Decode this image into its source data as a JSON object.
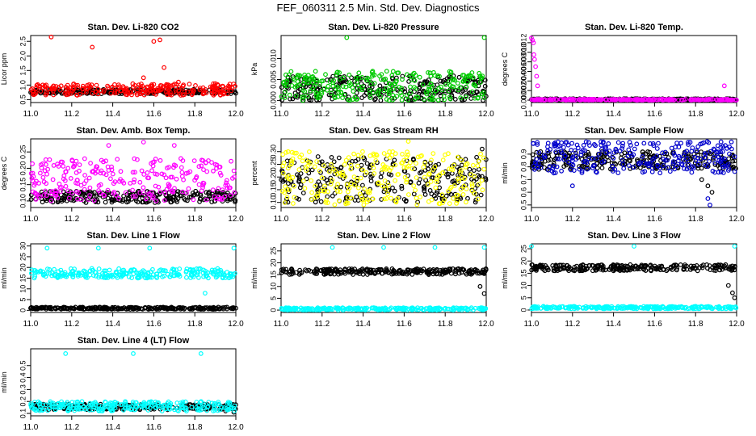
{
  "figure": {
    "title": "FEF_060311  2.5 Min. Std. Dev. Diagnostics"
  },
  "chart_data": [
    {
      "type": "scatter",
      "title": "Stan. Dev. Li-820 CO2",
      "xlabel": "",
      "ylabel": "Licor ppm",
      "xlim": [
        11.0,
        12.0
      ],
      "ylim": [
        0.4,
        2.7
      ],
      "x_ticks": [
        "11.0",
        "11.2",
        "11.4",
        "11.6",
        "11.8",
        "12.0"
      ],
      "y_ticks": [
        "0.5",
        "1.0",
        "1.5",
        "2.0",
        "2.5"
      ],
      "series": [
        {
          "color": "#000000",
          "band": [
            0.7,
            0.85
          ],
          "x": [
            11.0,
            11.2,
            11.4,
            11.6,
            11.8,
            12.0
          ],
          "y": [
            0.75,
            0.8,
            0.78,
            0.8,
            0.78,
            0.72
          ]
        },
        {
          "color": "#ff0000",
          "band": [
            0.65,
            1.05
          ],
          "x": [
            11.1,
            11.3,
            11.55,
            11.6,
            11.63,
            11.65,
            11.72,
            11.9
          ],
          "y": [
            2.65,
            2.3,
            1.25,
            2.5,
            2.55,
            1.6,
            1.1,
            1.05
          ]
        }
      ]
    },
    {
      "type": "scatter",
      "title": "Stan. Dev. Li-820 Pressure",
      "xlabel": "",
      "ylabel": "kPa",
      "xlim": [
        11.0,
        12.0
      ],
      "ylim": [
        -0.0005,
        0.0155
      ],
      "x_ticks": [
        "11.0",
        "11.2",
        "11.4",
        "11.6",
        "11.8",
        "12.0"
      ],
      "y_ticks": [
        "0.000",
        "0.005",
        "0.010"
      ],
      "series": [
        {
          "color": "#000000",
          "band": [
            0.0,
            0.006
          ],
          "x": [
            11.1,
            11.3,
            11.5,
            11.7,
            11.9
          ],
          "y": [
            0.005,
            0.0045,
            0.005,
            0.0045,
            0.005
          ]
        },
        {
          "color": "#00cc00",
          "band": [
            0.0,
            0.007
          ],
          "x": [
            11.32,
            11.99
          ],
          "y": [
            0.015,
            0.015
          ]
        }
      ]
    },
    {
      "type": "scatter",
      "title": "Stan. Dev. Li-820 Temp.",
      "xlabel": "",
      "ylabel": "degrees C",
      "xlim": [
        11.0,
        12.0
      ],
      "ylim": [
        -0.0005,
        0.0135
      ],
      "x_ticks": [
        "11.0",
        "11.2",
        "11.4",
        "11.6",
        "11.8",
        "12.0"
      ],
      "y_ticks": [
        "0.000",
        "0.002",
        "0.004",
        "0.006",
        "0.008",
        "0.010",
        "0.012"
      ],
      "series": [
        {
          "color": "#000000",
          "band": [
            0.0,
            0.0003
          ],
          "x": [
            11.5
          ],
          "y": [
            0.0
          ]
        },
        {
          "color": "#ff00ff",
          "band": [
            0.0,
            0.0002
          ],
          "x": [
            11.0,
            11.005,
            11.01,
            11.012,
            11.015,
            11.02,
            11.025,
            11.03,
            11.94
          ],
          "y": [
            0.013,
            0.0125,
            0.012,
            0.0095,
            0.0085,
            0.007,
            0.005,
            0.003,
            0.003
          ]
        }
      ]
    },
    {
      "type": "scatter",
      "title": "Stan. Dev. Amb. Box Temp.",
      "xlabel": "",
      "ylabel": "degrees C",
      "xlim": [
        11.0,
        12.0
      ],
      "ylim": [
        0.08,
        0.29
      ],
      "x_ticks": [
        "11.0",
        "11.2",
        "11.4",
        "11.6",
        "11.8",
        "12.0"
      ],
      "y_ticks": [
        "0.10",
        "0.15",
        "0.20",
        "0.25"
      ],
      "series": [
        {
          "color": "#000000",
          "band": [
            0.095,
            0.13
          ],
          "x": [
            11.1,
            11.5,
            11.9
          ],
          "y": [
            0.11,
            0.12,
            0.11
          ]
        },
        {
          "color": "#ff00ff",
          "band": [
            0.1,
            0.23
          ],
          "x": [
            11.55,
            11.38,
            11.7
          ],
          "y": [
            0.28,
            0.27,
            0.27
          ]
        }
      ]
    },
    {
      "type": "scatter",
      "title": "Stan. Dev. Gas Stream RH",
      "xlabel": "",
      "ylabel": "percent",
      "xlim": [
        11.0,
        12.0
      ],
      "ylim": [
        0.08,
        0.35
      ],
      "x_ticks": [
        "11.0",
        "11.2",
        "11.4",
        "11.6",
        "11.8",
        "12.0"
      ],
      "y_ticks": [
        "0.10",
        "0.15",
        "0.20",
        "0.25",
        "0.30"
      ],
      "series": [
        {
          "color": "#000000",
          "band": [
            0.1,
            0.28
          ],
          "x": [
            11.18,
            11.98
          ],
          "y": [
            0.28,
            0.31
          ]
        },
        {
          "color": "#ffff00",
          "band": [
            0.09,
            0.3
          ],
          "x": [
            11.62
          ],
          "y": [
            0.34
          ]
        }
      ]
    },
    {
      "type": "scatter",
      "title": "Stan. Dev. Sample Flow",
      "xlabel": "",
      "ylabel": "ml/min",
      "xlim": [
        11.0,
        12.0
      ],
      "ylim": [
        0.48,
        1.02
      ],
      "x_ticks": [
        "11.0",
        "11.2",
        "11.4",
        "11.6",
        "11.8",
        "12.0"
      ],
      "y_ticks": [
        "0.5",
        "0.6",
        "0.7",
        "0.8",
        "0.9"
      ],
      "series": [
        {
          "color": "#000000",
          "band": [
            0.78,
            0.92
          ],
          "x": [
            11.83,
            11.86,
            11.88
          ],
          "y": [
            0.7,
            0.65,
            0.6
          ]
        },
        {
          "color": "#0000cc",
          "band": [
            0.75,
            1.0
          ],
          "x": [
            11.2,
            11.86,
            11.87
          ],
          "y": [
            0.65,
            0.55,
            0.5
          ]
        }
      ]
    },
    {
      "type": "scatter",
      "title": "Stan. Dev. Line 1 Flow",
      "xlabel": "",
      "ylabel": "ml/min",
      "xlim": [
        11.0,
        12.0
      ],
      "ylim": [
        -1,
        31
      ],
      "x_ticks": [
        "11.0",
        "11.2",
        "11.4",
        "11.6",
        "11.8",
        "12.0"
      ],
      "y_ticks": [
        "0",
        "5",
        "10",
        "15",
        "20",
        "25",
        "30"
      ],
      "series": [
        {
          "color": "#000000",
          "band": [
            0.5,
            1.5
          ],
          "x": [
            11.0,
            12.0
          ],
          "y": [
            1.0,
            1.0
          ]
        },
        {
          "color": "#00ffff",
          "band": [
            15.0,
            19.5
          ],
          "x": [
            11.08,
            11.33,
            11.58,
            11.99,
            11.85
          ],
          "y": [
            29.0,
            29.0,
            29.0,
            29.0,
            8.0
          ]
        }
      ]
    },
    {
      "type": "scatter",
      "title": "Stan. Dev. Line 2 Flow",
      "xlabel": "",
      "ylabel": "ml/min",
      "xlim": [
        11.0,
        12.0
      ],
      "ylim": [
        -1,
        28
      ],
      "x_ticks": [
        "11.0",
        "11.2",
        "11.4",
        "11.6",
        "11.8",
        "12.0"
      ],
      "y_ticks": [
        "0",
        "5",
        "10",
        "15",
        "20",
        "25"
      ],
      "series": [
        {
          "color": "#000000",
          "band": [
            15.0,
            17.5
          ],
          "x": [
            11.97,
            11.99
          ],
          "y": [
            10.0,
            7.0
          ]
        },
        {
          "color": "#00ffff",
          "band": [
            0.0,
            1.0
          ],
          "x": [
            11.25,
            11.5,
            11.75,
            11.99
          ],
          "y": [
            26.5,
            26.5,
            26.5,
            26.5
          ]
        }
      ]
    },
    {
      "type": "scatter",
      "title": "Stan. Dev. Line 3 Flow",
      "xlabel": "",
      "ylabel": "ml/min",
      "xlim": [
        11.0,
        12.0
      ],
      "ylim": [
        -1,
        27
      ],
      "x_ticks": [
        "11.0",
        "11.2",
        "11.4",
        "11.6",
        "11.8",
        "12.0"
      ],
      "y_ticks": [
        "0",
        "5",
        "10",
        "15",
        "20",
        "25"
      ],
      "series": [
        {
          "color": "#000000",
          "band": [
            16.0,
            18.5
          ],
          "x": [
            11.96,
            11.98,
            11.99
          ],
          "y": [
            10.0,
            7.0,
            5.0
          ]
        },
        {
          "color": "#00ffff",
          "band": [
            0.5,
            1.5
          ],
          "x": [
            11.0,
            11.5,
            11.99
          ],
          "y": [
            26.0,
            26.0,
            26.0
          ]
        }
      ]
    },
    {
      "type": "scatter",
      "title": "Stan. Dev. Line 4 (LT) Flow",
      "xlabel": "",
      "ylabel": "ml/min",
      "xlim": [
        11.0,
        12.0
      ],
      "ylim": [
        0.08,
        0.64
      ],
      "x_ticks": [
        "11.0",
        "11.2",
        "11.4",
        "11.6",
        "11.8",
        "12.0"
      ],
      "y_ticks": [
        "0.1",
        "0.2",
        "0.3",
        "0.4",
        "0.5"
      ],
      "series": [
        {
          "color": "#000000",
          "band": [
            0.13,
            0.18
          ],
          "x": [
            11.95,
            11.99
          ],
          "y": [
            0.12,
            0.11
          ]
        },
        {
          "color": "#00ffff",
          "band": [
            0.12,
            0.2
          ],
          "x": [
            11.17,
            11.5,
            11.83
          ],
          "y": [
            0.6,
            0.6,
            0.6
          ]
        }
      ]
    }
  ]
}
